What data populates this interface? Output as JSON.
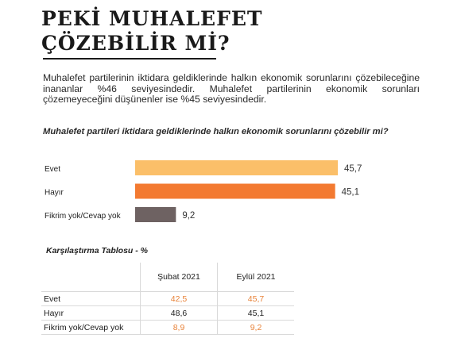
{
  "header": {
    "title_line1": "PEKİ MUHALEFET",
    "title_line2": "ÇÖZEBİLİR Mİ?"
  },
  "intro_text": "Muhalefet partilerinin iktidara geldiklerinde halkın ekonomik sorunlarını çözebileceğine inananlar %46 seviyesindedir. Muhalefet partilerinin ekonomik sorunları çözemeyeceğini düşünenler ise %45 seviyesindedir.",
  "question": "Muhalefet partileri iktidara geldiklerinde halkın ekonomik sorunlarını çözebilir mi?",
  "chart_data": {
    "type": "bar",
    "orientation": "horizontal",
    "categories": [
      "Evet",
      "Hayır",
      "Fikrim yok/Cevap yok"
    ],
    "values": [
      45.7,
      45.1,
      9.2
    ],
    "value_labels": [
      "45,7",
      "45,1",
      "9,2"
    ],
    "colors": [
      "#fbbf69",
      "#f37a31",
      "#6e6262"
    ],
    "xlim": [
      0,
      48
    ],
    "grid": false,
    "title": "",
    "xlabel": "",
    "ylabel": ""
  },
  "table": {
    "subtitle": "Karşılaştırma Tablosu - %",
    "headers": [
      "",
      "Şubat 2021",
      "Eylül 2021"
    ],
    "rows": [
      {
        "label": "Evet",
        "v1": "42,5",
        "v2": "45,7",
        "c1": "orange",
        "c2": "orange"
      },
      {
        "label": "Hayır",
        "v1": "48,6",
        "v2": "45,1",
        "c1": "dark",
        "c2": "dark"
      },
      {
        "label": "Fikrim yok/Cevap yok",
        "v1": "8,9",
        "v2": "9,2",
        "c1": "orange",
        "c2": "orange"
      }
    ]
  }
}
